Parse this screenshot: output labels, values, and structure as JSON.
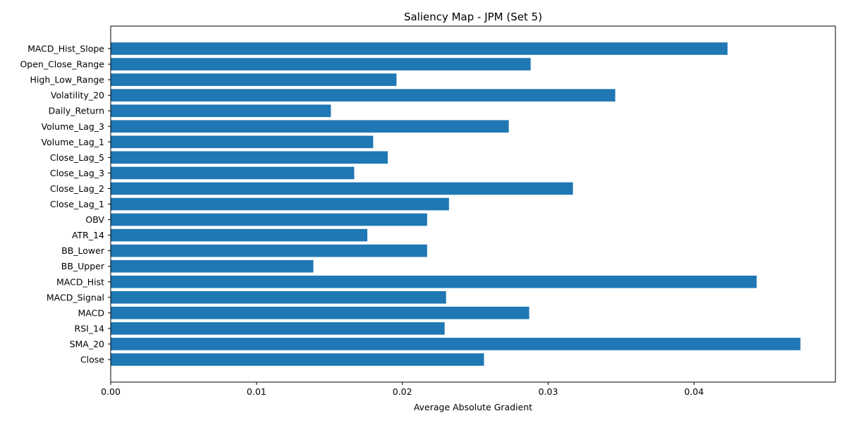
{
  "chart_data": {
    "type": "bar",
    "orientation": "horizontal",
    "title": "Saliency Map - JPM (Set 5)",
    "xlabel": "Average Absolute Gradient",
    "ylabel": "",
    "xlim": [
      0,
      0.0497
    ],
    "xticks": [
      0,
      0.01,
      0.02,
      0.03,
      0.04
    ],
    "xtick_labels": [
      "0.00",
      "0.01",
      "0.02",
      "0.03",
      "0.04"
    ],
    "categories": [
      "Close",
      "SMA_20",
      "RSI_14",
      "MACD",
      "MACD_Signal",
      "MACD_Hist",
      "BB_Upper",
      "BB_Lower",
      "ATR_14",
      "OBV",
      "Close_Lag_1",
      "Close_Lag_2",
      "Close_Lag_3",
      "Close_Lag_5",
      "Volume_Lag_1",
      "Volume_Lag_3",
      "Daily_Return",
      "Volatility_20",
      "High_Low_Range",
      "Open_Close_Range",
      "MACD_Hist_Slope"
    ],
    "values": [
      0.0256,
      0.0473,
      0.0229,
      0.0287,
      0.023,
      0.0443,
      0.0139,
      0.0217,
      0.0176,
      0.0217,
      0.0232,
      0.0317,
      0.0167,
      0.019,
      0.018,
      0.0273,
      0.0151,
      0.0346,
      0.0196,
      0.0288,
      0.0423
    ],
    "color": "#1f77b4",
    "grid": false,
    "legend": "none"
  }
}
